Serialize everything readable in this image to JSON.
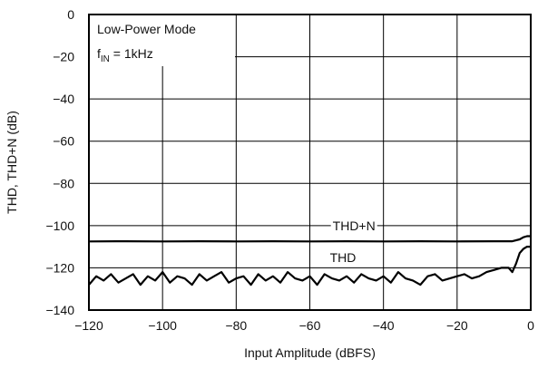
{
  "chart_data": {
    "type": "line",
    "title": "",
    "xlabel": "Input Amplitude (dBFS)",
    "ylabel": "THD, THD+N (dB)",
    "xlim": [
      -120,
      0
    ],
    "ylim": [
      -140,
      0
    ],
    "xticks": [
      -120,
      -100,
      -80,
      -60,
      -40,
      -20,
      0
    ],
    "yticks": [
      0,
      -20,
      -40,
      -60,
      -80,
      -100,
      -120,
      -140
    ],
    "xtick_labels": [
      "−120",
      "−100",
      "−80",
      "−60",
      "−40",
      "−20",
      "0"
    ],
    "ytick_labels": [
      "0",
      "−20",
      "−40",
      "−60",
      "−80",
      "−100",
      "−120",
      "−140"
    ],
    "grid": true,
    "line_color": "#000000",
    "annotation": {
      "line1": "Low-Power Mode",
      "line2_prefix": "f",
      "line2_sub": "IN",
      "line2_suffix": " = 1kHz"
    },
    "series": [
      {
        "name": "THD+N",
        "x": [
          -120,
          -110,
          -100,
          -90,
          -80,
          -70,
          -60,
          -50,
          -40,
          -30,
          -20,
          -10,
          -5,
          -3,
          -2,
          -1,
          0
        ],
        "y": [
          -107.5,
          -107.4,
          -107.5,
          -107.4,
          -107.5,
          -107.4,
          -107.5,
          -107.4,
          -107.5,
          -107.4,
          -107.5,
          -107.4,
          -107.4,
          -106.5,
          -105.5,
          -105,
          -105
        ]
      },
      {
        "name": "THD",
        "x": [
          -120,
          -118,
          -116,
          -114,
          -112,
          -110,
          -108,
          -106,
          -104,
          -102,
          -100,
          -98,
          -96,
          -94,
          -92,
          -90,
          -88,
          -86,
          -84,
          -82,
          -80,
          -78,
          -76,
          -74,
          -72,
          -70,
          -68,
          -66,
          -64,
          -62,
          -60,
          -58,
          -56,
          -54,
          -52,
          -50,
          -48,
          -46,
          -44,
          -42,
          -40,
          -38,
          -36,
          -34,
          -32,
          -30,
          -28,
          -26,
          -24,
          -22,
          -20,
          -18,
          -16,
          -14,
          -12,
          -10,
          -8,
          -6,
          -5,
          -4,
          -3,
          -2,
          -1,
          0
        ],
        "y": [
          -128,
          -124,
          -126,
          -123,
          -127,
          -125,
          -123,
          -128,
          -124,
          -126,
          -122,
          -127,
          -124,
          -125,
          -128,
          -123,
          -126,
          -124,
          -122,
          -127,
          -125,
          -124,
          -128,
          -123,
          -126,
          -124,
          -127,
          -122,
          -125,
          -126,
          -124,
          -128,
          -123,
          -125,
          -126,
          -124,
          -127,
          -123,
          -125,
          -126,
          -124,
          -127,
          -122,
          -125,
          -126,
          -128,
          -124,
          -123,
          -126,
          -125,
          -124,
          -123,
          -125,
          -124,
          -122,
          -121,
          -120,
          -120,
          -122,
          -118,
          -113,
          -111,
          -110,
          -110
        ]
      }
    ]
  }
}
